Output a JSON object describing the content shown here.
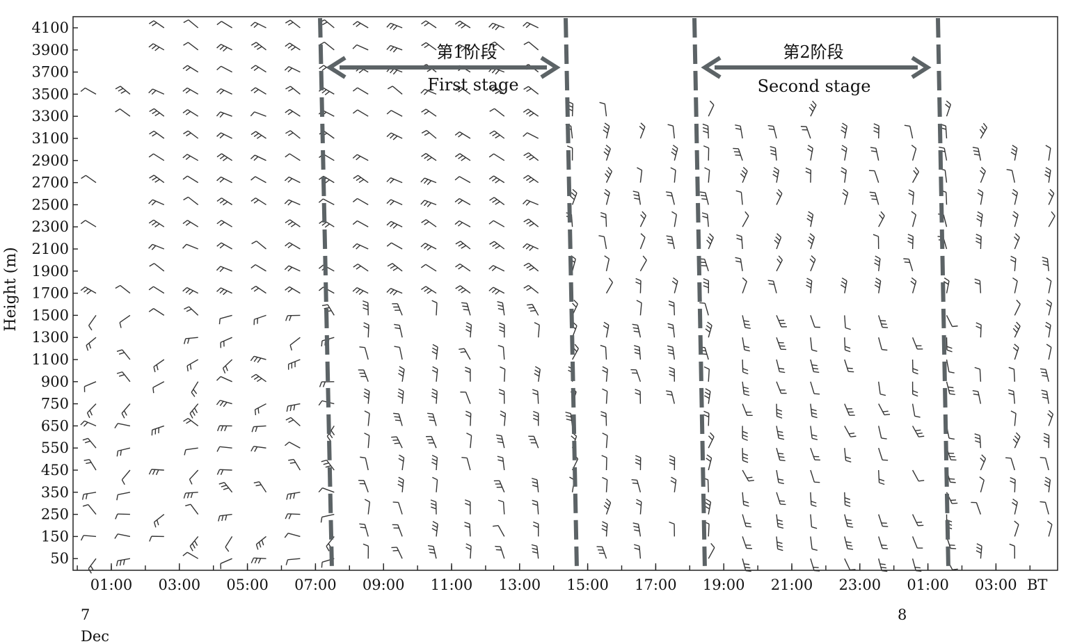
{
  "chart_data": {
    "type": "wind_barb_time_height",
    "ylabel": "Height (m)",
    "y_ticks": [
      50,
      150,
      250,
      350,
      450,
      550,
      650,
      750,
      900,
      1100,
      1300,
      1500,
      1700,
      1900,
      2100,
      2300,
      2500,
      2700,
      2900,
      3100,
      3300,
      3500,
      3700,
      3900,
      4100
    ],
    "x_ticks": [
      "01:00",
      "03:00",
      "05:00",
      "07:00",
      "09:00",
      "11:00",
      "13:00",
      "15:00",
      "17:00",
      "19:00",
      "21:00",
      "23:00",
      "01:00",
      "03:00"
    ],
    "x_unit": "BT",
    "date_labels": [
      {
        "day": "7",
        "month": "Dec"
      },
      {
        "day": "8",
        "month": ""
      }
    ],
    "stages": [
      {
        "name_cn": "第1阶段",
        "name_en": "First stage"
      },
      {
        "name_cn": "第2阶段",
        "name_en": "Second stage"
      }
    ]
  }
}
